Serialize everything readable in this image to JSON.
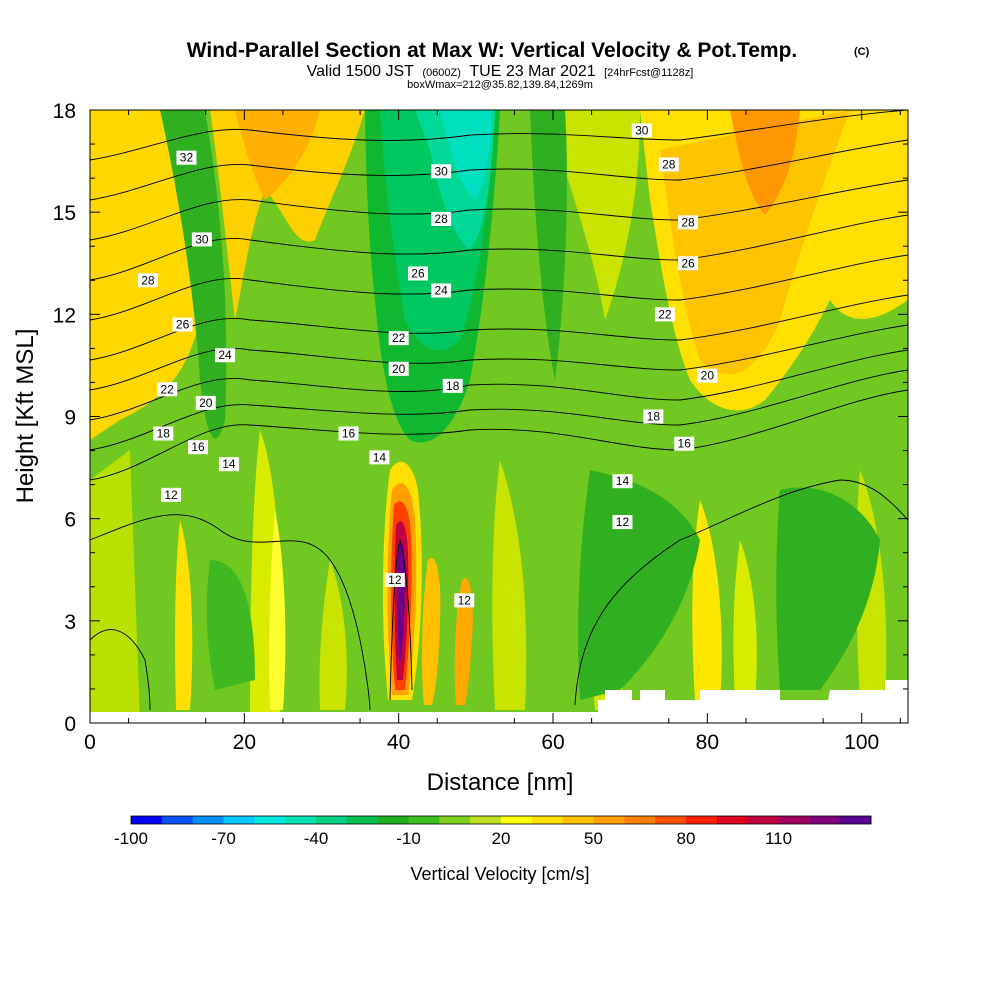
{
  "chart_data": {
    "type": "heatmap",
    "title": "Wind-Parallel Section at Max W: Vertical Velocity & Pot.Temp.",
    "title_mark": "(C)",
    "subtitle_main": "Valid 1500 JST",
    "subtitle_small1": "(0600Z)",
    "subtitle_date": "TUE 23 Mar 2021",
    "subtitle_small2": "[24hrFcst@1128z]",
    "subtitle2": "boxWmax=212@35.82,139.84,1269m",
    "xlabel": "Distance [nm]",
    "ylabel": "Height [Kft MSL]",
    "xlim": [
      0,
      106
    ],
    "ylim": [
      0,
      18
    ],
    "xticks": [
      "0",
      "20",
      "40",
      "60",
      "80",
      "100"
    ],
    "yticks": [
      "0",
      "3",
      "6",
      "9",
      "12",
      "15",
      "18"
    ],
    "colorbar": {
      "label": "Vertical Velocity [cm/s]",
      "tick_labels": [
        "-100",
        "-70",
        "-40",
        "-10",
        "20",
        "50",
        "80",
        "110"
      ],
      "colors": [
        "#0000ff",
        "#0a50ff",
        "#0090ff",
        "#00c8ff",
        "#00e8e0",
        "#00e0b0",
        "#00d080",
        "#00c050",
        "#20b020",
        "#40c020",
        "#80d020",
        "#c0e020",
        "#ffff00",
        "#ffe000",
        "#ffc000",
        "#ffa000",
        "#ff8000",
        "#ff5000",
        "#ff2000",
        "#e00020",
        "#c00040",
        "#a00060",
        "#800080",
        "#5a0090"
      ]
    },
    "contour_labels": [
      {
        "text": "32",
        "x": 12.5,
        "y": 16.6
      },
      {
        "text": "30",
        "x": 71.5,
        "y": 17.4
      },
      {
        "text": "30",
        "x": 14.5,
        "y": 14.2
      },
      {
        "text": "30",
        "x": 45.5,
        "y": 16.2
      },
      {
        "text": "28",
        "x": 75.0,
        "y": 16.4
      },
      {
        "text": "28",
        "x": 7.5,
        "y": 13.0
      },
      {
        "text": "28",
        "x": 45.5,
        "y": 14.8
      },
      {
        "text": "28",
        "x": 77.5,
        "y": 14.7
      },
      {
        "text": "26",
        "x": 12.0,
        "y": 11.7
      },
      {
        "text": "26",
        "x": 42.5,
        "y": 13.2
      },
      {
        "text": "26",
        "x": 77.5,
        "y": 13.5
      },
      {
        "text": "24",
        "x": 45.5,
        "y": 12.7
      },
      {
        "text": "24",
        "x": 17.5,
        "y": 10.8
      },
      {
        "text": "22",
        "x": 74.5,
        "y": 12.0
      },
      {
        "text": "22",
        "x": 40.0,
        "y": 11.3
      },
      {
        "text": "22",
        "x": 10.0,
        "y": 9.8
      },
      {
        "text": "20",
        "x": 40.0,
        "y": 10.4
      },
      {
        "text": "20",
        "x": 80.0,
        "y": 10.2
      },
      {
        "text": "20",
        "x": 15.0,
        "y": 9.4
      },
      {
        "text": "18",
        "x": 47.0,
        "y": 9.9
      },
      {
        "text": "18",
        "x": 73.0,
        "y": 9.0
      },
      {
        "text": "18",
        "x": 9.5,
        "y": 8.5
      },
      {
        "text": "16",
        "x": 33.5,
        "y": 8.5
      },
      {
        "text": "16",
        "x": 14.0,
        "y": 8.1
      },
      {
        "text": "16",
        "x": 77.0,
        "y": 8.2
      },
      {
        "text": "14",
        "x": 37.5,
        "y": 7.8
      },
      {
        "text": "14",
        "x": 18.0,
        "y": 7.6
      },
      {
        "text": "14",
        "x": 69.0,
        "y": 7.1
      },
      {
        "text": "12",
        "x": 10.5,
        "y": 6.7
      },
      {
        "text": "12",
        "x": 69.0,
        "y": 5.9
      },
      {
        "text": "12",
        "x": 39.5,
        "y": 4.2
      },
      {
        "text": "12",
        "x": 48.5,
        "y": 3.6
      }
    ]
  }
}
